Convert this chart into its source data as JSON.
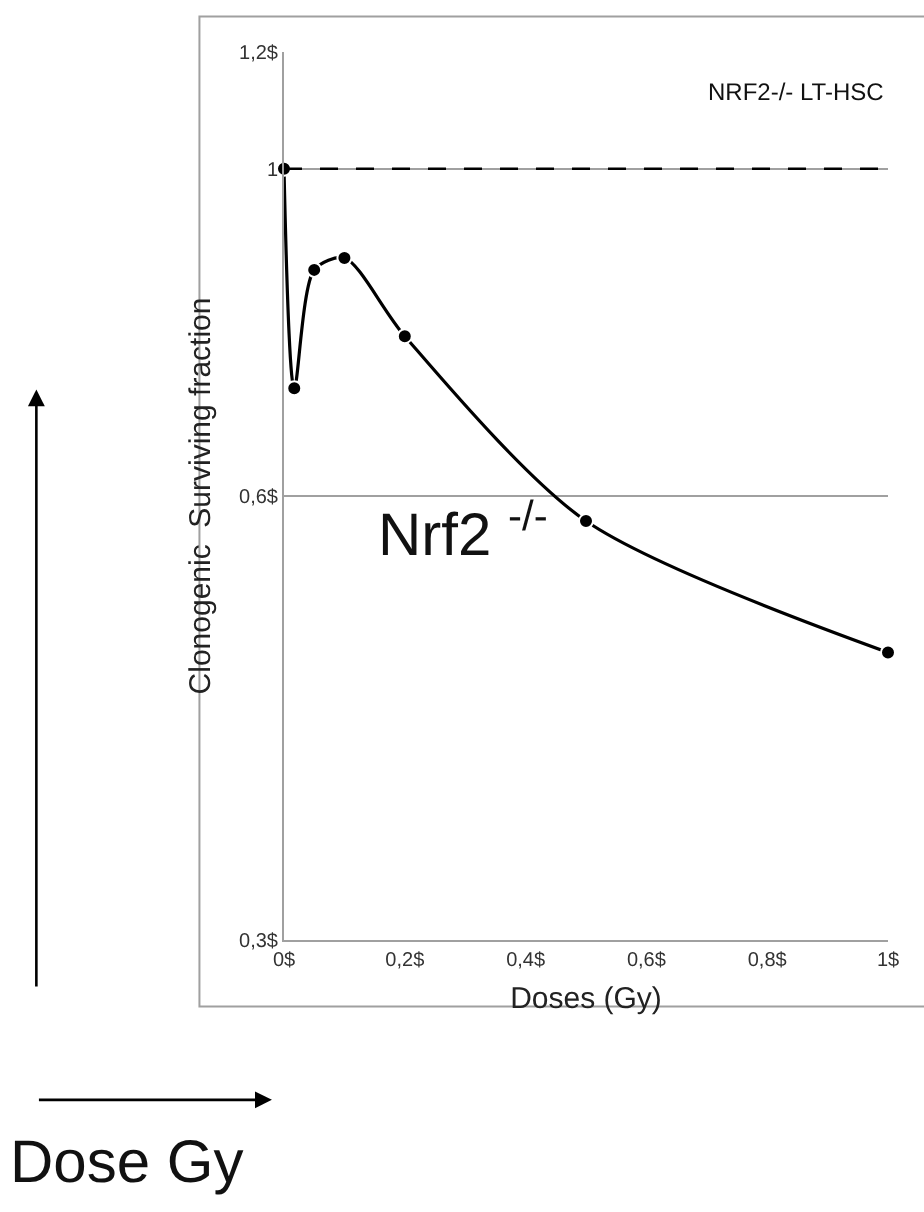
{
  "chart_data": {
    "type": "line",
    "xlabel": "Doses (Gy)",
    "ylabel": "Clonogenic  Surviving fraction",
    "x": [
      0,
      0.017,
      0.05,
      0.1,
      0.2,
      0.5,
      1
    ],
    "series": [
      {
        "color": "#000000",
        "values": [
          1,
          0.71,
          0.854,
          0.87,
          0.77,
          0.577,
          0.47
        ]
      }
    ],
    "marker": "circle",
    "line_style": "solid",
    "log": "y",
    "xlim": [
      0,
      1
    ],
    "xticks": [
      {
        "value": 0,
        "label": "0$"
      },
      {
        "value": 0.2,
        "label": "0,2$"
      },
      {
        "value": 0.4,
        "label": "0,4$"
      },
      {
        "value": 0.6,
        "label": "0,6$"
      },
      {
        "value": 0.8,
        "label": "0,8$"
      },
      {
        "value": 1,
        "label": "1$"
      }
    ],
    "ylim": [
      0.3,
      1.2
    ],
    "yticks": [
      {
        "value": 0.3,
        "label": "0,3$"
      },
      {
        "value": 0.6,
        "label": "0,6$"
      },
      1,
      {
        "value": 1.2,
        "label": "1,2$"
      }
    ],
    "grid": "y",
    "legend": false,
    "ref_lines": [
      {
        "axis": "y",
        "value": 1,
        "line_style": "dashed",
        "color": "#000000"
      }
    ],
    "annotations": [
      "NRF2-/- LT-HSC",
      "Nrf2 $^{-/-}$",
      "Dose Gy"
    ]
  }
}
